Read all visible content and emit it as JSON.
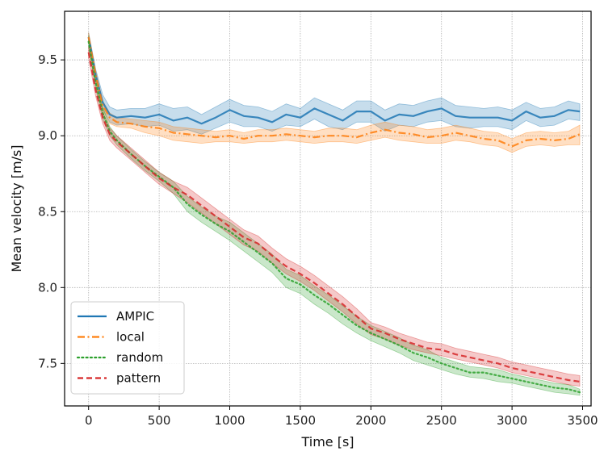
{
  "chart_data": {
    "type": "line",
    "title": "",
    "xlabel": "Time [s]",
    "ylabel": "Mean velocity [m/s]",
    "xlim": [
      -170,
      3560
    ],
    "ylim": [
      7.22,
      9.82
    ],
    "xticks": [
      0,
      500,
      1000,
      1500,
      2000,
      2500,
      3000,
      3500
    ],
    "xtick_labels": [
      "0",
      "500",
      "1000",
      "1500",
      "2000",
      "2500",
      "3000",
      "3500"
    ],
    "yticks": [
      7.5,
      8.0,
      8.5,
      9.0,
      9.5
    ],
    "ytick_labels": [
      "7.5",
      "8.0",
      "8.5",
      "9.0",
      "9.5"
    ],
    "grid": true,
    "legend_position": "lower-left",
    "series": [
      {
        "name": "AMPIC",
        "color": "#1f77b4",
        "style": "solid",
        "x": [
          0,
          50,
          100,
          150,
          200,
          300,
          400,
          500,
          600,
          700,
          800,
          900,
          1000,
          1100,
          1200,
          1300,
          1400,
          1500,
          1600,
          1700,
          1800,
          1900,
          2000,
          2100,
          2200,
          2300,
          2400,
          2500,
          2600,
          2700,
          2800,
          2900,
          3000,
          3100,
          3200,
          3300,
          3400,
          3480
        ],
        "y": [
          9.65,
          9.4,
          9.22,
          9.14,
          9.12,
          9.13,
          9.12,
          9.14,
          9.1,
          9.12,
          9.08,
          9.12,
          9.17,
          9.13,
          9.12,
          9.09,
          9.14,
          9.12,
          9.18,
          9.14,
          9.1,
          9.16,
          9.16,
          9.1,
          9.14,
          9.13,
          9.16,
          9.18,
          9.13,
          9.12,
          9.12,
          9.12,
          9.1,
          9.16,
          9.12,
          9.13,
          9.17,
          9.16
        ],
        "lower": [
          9.62,
          9.36,
          9.18,
          9.09,
          9.07,
          9.08,
          9.06,
          9.07,
          9.03,
          9.04,
          9.01,
          9.05,
          9.09,
          9.06,
          9.06,
          9.03,
          9.07,
          9.06,
          9.11,
          9.06,
          9.04,
          9.09,
          9.09,
          9.03,
          9.07,
          9.06,
          9.09,
          9.1,
          9.06,
          9.05,
          9.06,
          9.06,
          9.04,
          9.1,
          9.06,
          9.07,
          9.11,
          9.1
        ],
        "upper": [
          9.68,
          9.44,
          9.27,
          9.19,
          9.17,
          9.18,
          9.18,
          9.21,
          9.18,
          9.19,
          9.14,
          9.19,
          9.24,
          9.2,
          9.19,
          9.16,
          9.21,
          9.18,
          9.25,
          9.21,
          9.17,
          9.23,
          9.23,
          9.17,
          9.21,
          9.2,
          9.23,
          9.25,
          9.2,
          9.19,
          9.18,
          9.19,
          9.17,
          9.22,
          9.18,
          9.19,
          9.23,
          9.21
        ]
      },
      {
        "name": "local",
        "color": "#ff7f0e",
        "style": "dashdot",
        "x": [
          0,
          50,
          100,
          150,
          200,
          300,
          400,
          500,
          600,
          700,
          800,
          900,
          1000,
          1100,
          1200,
          1300,
          1400,
          1500,
          1600,
          1700,
          1800,
          1900,
          2000,
          2100,
          2200,
          2300,
          2400,
          2500,
          2600,
          2700,
          2800,
          2900,
          3000,
          3100,
          3200,
          3300,
          3400,
          3480
        ],
        "y": [
          9.65,
          9.4,
          9.2,
          9.12,
          9.09,
          9.08,
          9.06,
          9.05,
          9.02,
          9.01,
          9.0,
          8.99,
          9.0,
          8.98,
          9.0,
          9.0,
          9.01,
          9.0,
          8.99,
          9.0,
          9.0,
          8.99,
          9.02,
          9.04,
          9.02,
          9.01,
          8.99,
          9.0,
          9.02,
          9.0,
          8.98,
          8.97,
          8.93,
          8.97,
          8.98,
          8.97,
          8.98,
          9.01
        ],
        "lower": [
          9.62,
          9.37,
          9.17,
          9.08,
          9.06,
          9.05,
          9.02,
          9.0,
          8.97,
          8.96,
          8.95,
          8.96,
          8.96,
          8.95,
          8.96,
          8.96,
          8.97,
          8.96,
          8.95,
          8.96,
          8.96,
          8.95,
          8.97,
          8.99,
          8.97,
          8.96,
          8.95,
          8.95,
          8.97,
          8.96,
          8.94,
          8.93,
          8.89,
          8.93,
          8.94,
          8.93,
          8.94,
          8.94
        ],
        "upper": [
          9.68,
          9.43,
          9.23,
          9.15,
          9.12,
          9.11,
          9.1,
          9.09,
          9.06,
          9.05,
          9.04,
          9.03,
          9.04,
          9.02,
          9.04,
          9.04,
          9.05,
          9.04,
          9.03,
          9.05,
          9.05,
          9.04,
          9.07,
          9.09,
          9.07,
          9.06,
          9.04,
          9.05,
          9.07,
          9.05,
          9.03,
          9.02,
          8.98,
          9.02,
          9.03,
          9.02,
          9.03,
          9.07
        ]
      },
      {
        "name": "random",
        "color": "#2ca02c",
        "style": "dotted",
        "x": [
          0,
          50,
          100,
          150,
          200,
          300,
          400,
          500,
          600,
          700,
          800,
          900,
          1000,
          1100,
          1200,
          1300,
          1400,
          1500,
          1600,
          1700,
          1800,
          1900,
          2000,
          2100,
          2200,
          2300,
          2400,
          2500,
          2600,
          2700,
          2800,
          2900,
          3000,
          3100,
          3200,
          3300,
          3400,
          3480
        ],
        "y": [
          9.62,
          9.35,
          9.15,
          9.03,
          8.97,
          8.88,
          8.8,
          8.73,
          8.66,
          8.55,
          8.48,
          8.42,
          8.37,
          8.3,
          8.23,
          8.16,
          8.06,
          8.02,
          7.95,
          7.89,
          7.82,
          7.75,
          7.7,
          7.66,
          7.62,
          7.57,
          7.54,
          7.5,
          7.47,
          7.44,
          7.44,
          7.42,
          7.4,
          7.38,
          7.36,
          7.34,
          7.33,
          7.31
        ],
        "lower": [
          9.58,
          9.31,
          9.11,
          9.0,
          8.94,
          8.85,
          8.77,
          8.7,
          8.62,
          8.5,
          8.43,
          8.37,
          8.31,
          8.24,
          8.17,
          8.1,
          8.0,
          7.96,
          7.89,
          7.83,
          7.76,
          7.7,
          7.65,
          7.61,
          7.57,
          7.52,
          7.49,
          7.46,
          7.43,
          7.41,
          7.4,
          7.38,
          7.37,
          7.35,
          7.33,
          7.31,
          7.3,
          7.29
        ],
        "upper": [
          9.66,
          9.39,
          9.19,
          9.06,
          9.0,
          8.91,
          8.83,
          8.76,
          8.7,
          8.6,
          8.53,
          8.47,
          8.43,
          8.36,
          8.29,
          8.22,
          8.12,
          8.08,
          8.01,
          7.95,
          7.88,
          7.81,
          7.75,
          7.71,
          7.67,
          7.62,
          7.59,
          7.54,
          7.51,
          7.48,
          7.47,
          7.46,
          7.43,
          7.41,
          7.39,
          7.37,
          7.36,
          7.33
        ]
      },
      {
        "name": "pattern",
        "color": "#d62728",
        "style": "dashed",
        "x": [
          0,
          50,
          100,
          150,
          200,
          300,
          400,
          500,
          600,
          700,
          800,
          900,
          1000,
          1100,
          1200,
          1300,
          1400,
          1500,
          1600,
          1700,
          1800,
          1900,
          2000,
          2100,
          2200,
          2300,
          2400,
          2500,
          2600,
          2700,
          2800,
          2900,
          3000,
          3100,
          3200,
          3300,
          3400,
          3480
        ],
        "y": [
          9.55,
          9.3,
          9.12,
          9.01,
          8.96,
          8.88,
          8.8,
          8.72,
          8.66,
          8.61,
          8.54,
          8.47,
          8.4,
          8.33,
          8.29,
          8.21,
          8.14,
          8.09,
          8.03,
          7.96,
          7.89,
          7.81,
          7.73,
          7.7,
          7.66,
          7.63,
          7.6,
          7.59,
          7.56,
          7.54,
          7.52,
          7.5,
          7.47,
          7.45,
          7.43,
          7.41,
          7.39,
          7.38
        ],
        "lower": [
          9.51,
          9.26,
          9.08,
          8.97,
          8.92,
          8.84,
          8.76,
          8.68,
          8.62,
          8.56,
          8.49,
          8.42,
          8.35,
          8.28,
          8.24,
          8.16,
          8.09,
          8.04,
          7.98,
          7.91,
          7.84,
          7.76,
          7.69,
          7.66,
          7.62,
          7.59,
          7.57,
          7.55,
          7.53,
          7.51,
          7.49,
          7.47,
          7.44,
          7.42,
          7.4,
          7.38,
          7.36,
          7.35
        ],
        "upper": [
          9.59,
          9.34,
          9.16,
          9.05,
          9.0,
          8.92,
          8.84,
          8.76,
          8.7,
          8.66,
          8.59,
          8.52,
          8.45,
          8.38,
          8.34,
          8.26,
          8.19,
          8.14,
          8.08,
          8.01,
          7.94,
          7.86,
          7.77,
          7.74,
          7.7,
          7.67,
          7.64,
          7.63,
          7.6,
          7.58,
          7.56,
          7.54,
          7.51,
          7.49,
          7.47,
          7.45,
          7.43,
          7.42
        ]
      }
    ]
  }
}
